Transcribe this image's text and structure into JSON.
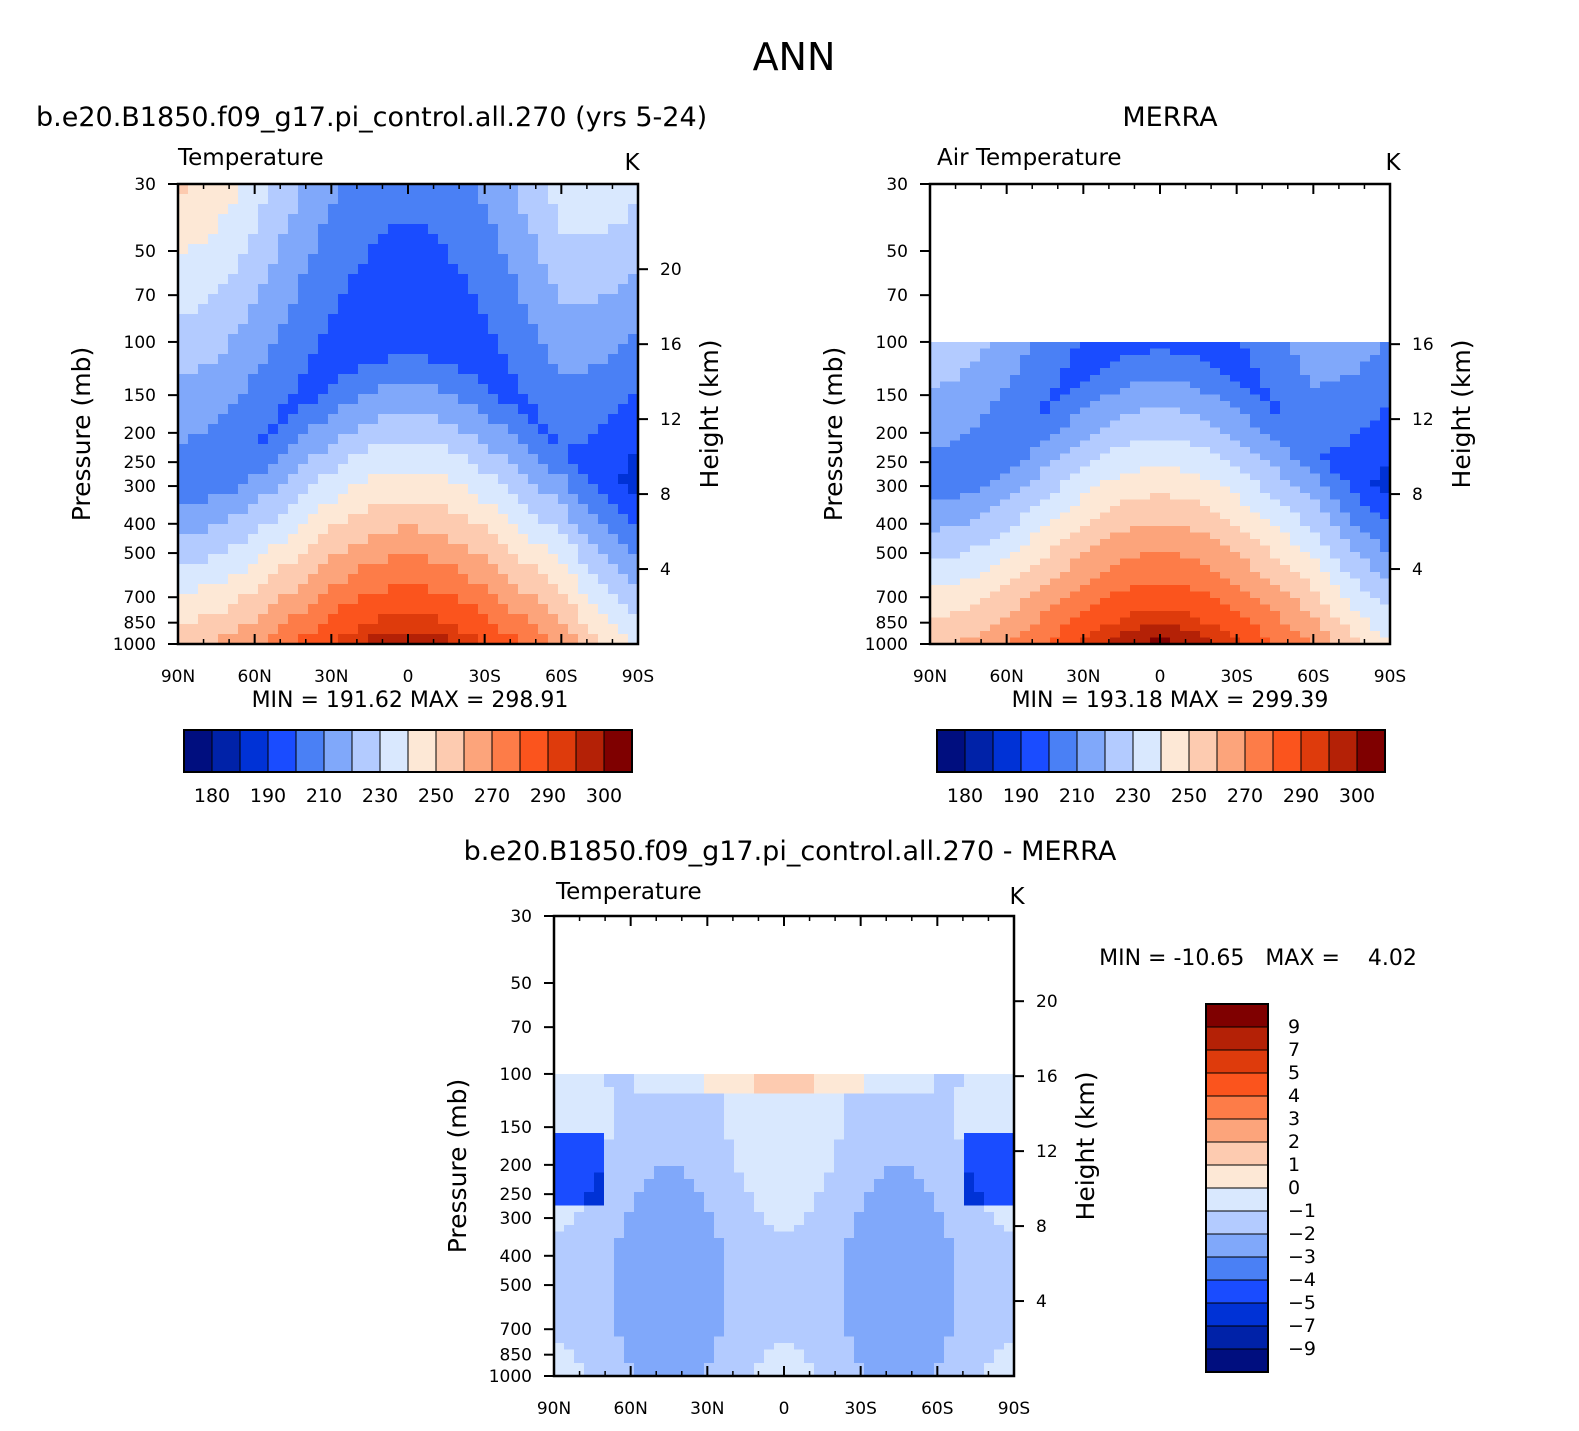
{
  "figure": {
    "title": "ANN"
  },
  "colors": {
    "abs_levels": [
      "#000e7f",
      "#0022a8",
      "#0032d6",
      "#1a4cff",
      "#4a80f5",
      "#80a8fa",
      "#b3cbff",
      "#d9e8fe",
      "#fde8d6",
      "#fdcbb0",
      "#fca47b",
      "#fd7c48",
      "#fb541d",
      "#de3b0c",
      "#b42106",
      "#7f0000"
    ],
    "diff_levels": [
      "#000e7f",
      "#0022a8",
      "#0032d6",
      "#1a4cff",
      "#4a80f5",
      "#80a8fa",
      "#b3cbff",
      "#d9e8fe",
      "#fde8d6",
      "#fdcbb0",
      "#fca47b",
      "#fd7c48",
      "#fb541d",
      "#de3b0c",
      "#b42106",
      "#7f0000"
    ]
  },
  "chart_data": [
    {
      "id": "model",
      "type": "contour",
      "title": "b.e20.B1850.f09_g17.pi_control.all.270 (yrs 5-24)",
      "variable": "Temperature",
      "units": "K",
      "xlabel": "",
      "ylabel": "Pressure (mb)",
      "y2label": "Height (km)",
      "x_ticks": [
        "90N",
        "60N",
        "30N",
        "0",
        "30S",
        "60S",
        "90S"
      ],
      "x_tick_values": [
        -90,
        -60,
        -30,
        0,
        30,
        60,
        90
      ],
      "y_ticks": [
        30,
        50,
        70,
        100,
        150,
        200,
        250,
        300,
        400,
        500,
        700,
        850,
        1000
      ],
      "y2_ticks": [
        20,
        16,
        12,
        8,
        4
      ],
      "data_top_mb": 30,
      "stats_text": "MIN =  191.62   MAX =  298.91",
      "stats": {
        "min": 191.62,
        "max": 298.91
      },
      "colorbar_labels": [
        "180",
        "190",
        "210",
        "230",
        "250",
        "270",
        "290",
        "300"
      ]
    },
    {
      "id": "obs",
      "type": "contour",
      "title": "MERRA",
      "variable": "Air Temperature",
      "units": "K",
      "xlabel": "",
      "ylabel": "Pressure (mb)",
      "y2label": "Height (km)",
      "x_ticks": [
        "90N",
        "60N",
        "30N",
        "0",
        "30S",
        "60S",
        "90S"
      ],
      "x_tick_values": [
        -90,
        -60,
        -30,
        0,
        30,
        60,
        90
      ],
      "y_ticks": [
        30,
        50,
        70,
        100,
        150,
        200,
        250,
        300,
        400,
        500,
        700,
        850,
        1000
      ],
      "y2_ticks": [
        16,
        12,
        8,
        4
      ],
      "data_top_mb": 100,
      "stats_text": "MIN =  193.18   MAX =  299.39",
      "stats": {
        "min": 193.18,
        "max": 299.39
      },
      "colorbar_labels": [
        "180",
        "190",
        "210",
        "230",
        "250",
        "270",
        "290",
        "300"
      ]
    },
    {
      "id": "diff",
      "type": "contour",
      "title": "b.e20.B1850.f09_g17.pi_control.all.270 - MERRA",
      "variable": "Temperature",
      "units": "K",
      "xlabel": "",
      "ylabel": "Pressure (mb)",
      "y2label": "Height (km)",
      "x_ticks": [
        "90N",
        "60N",
        "30N",
        "0",
        "30S",
        "60S",
        "90S"
      ],
      "x_tick_values": [
        -90,
        -60,
        -30,
        0,
        30,
        60,
        90
      ],
      "y_ticks": [
        30,
        50,
        70,
        100,
        150,
        200,
        250,
        300,
        400,
        500,
        700,
        850,
        1000
      ],
      "y2_ticks": [
        20,
        16,
        12,
        8,
        4
      ],
      "data_top_mb": 100,
      "stats_text": "MIN = -10.65   MAX =    4.02",
      "stats": {
        "min": -10.65,
        "max": 4.02
      },
      "colorbar_labels": [
        "9",
        "7",
        "5",
        "4",
        "3",
        "2",
        "1",
        "0",
        "-1",
        "-2",
        "-3",
        "-4",
        "-5",
        "-7",
        "-9"
      ]
    }
  ]
}
